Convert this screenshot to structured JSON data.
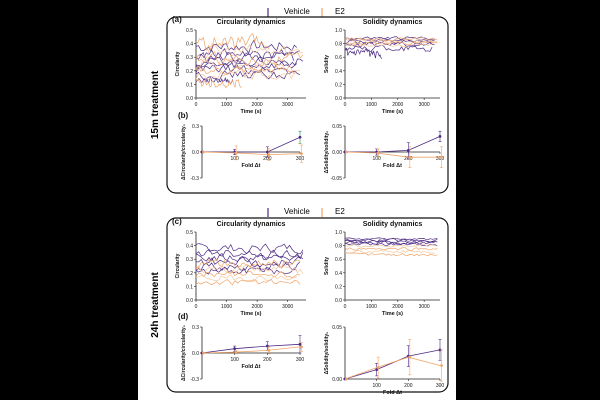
{
  "figure": {
    "background": "#000000",
    "panel_bg": "#ffffff",
    "colors": {
      "vehicle": "#4b2a85",
      "e2": "#f0a468",
      "e2_light": "#f6c79f",
      "axis": "#222222",
      "green": "#2e8b57"
    }
  },
  "legend": {
    "vehicle": "Vehicle",
    "e2": "E2"
  },
  "groups": [
    {
      "label": "15m treatment"
    },
    {
      "label": "24h treatment"
    }
  ],
  "chart_data": [
    {
      "id": "a-circ",
      "panel": "(a)",
      "type": "line",
      "title": "Circularity dynamics",
      "xlabel": "Time (s)",
      "ylabel": "Circularity",
      "xlim": [
        0,
        3600
      ],
      "ylim": [
        0,
        0.5
      ],
      "xticks": [
        "0",
        "1000",
        "2000",
        "3000"
      ],
      "yticks": [
        "0.0",
        "0.1",
        "0.2",
        "0.3",
        "0.4",
        "0.5"
      ],
      "series": [
        {
          "name": "Vehicle",
          "level": 0.38,
          "amp": 0.04,
          "end_x": 3300
        },
        {
          "name": "Vehicle",
          "level": 0.33,
          "amp": 0.03,
          "end_x": 3400
        },
        {
          "name": "Vehicle",
          "level": 0.3,
          "amp": 0.04,
          "end_x": 3200
        },
        {
          "name": "Vehicle",
          "level": 0.27,
          "amp": 0.03,
          "end_x": 3500
        },
        {
          "name": "Vehicle",
          "level": 0.24,
          "amp": 0.03,
          "end_x": 3300
        },
        {
          "name": "Vehicle",
          "level": 0.21,
          "amp": 0.03,
          "end_x": 3000
        },
        {
          "name": "Vehicle",
          "level": 0.17,
          "amp": 0.03,
          "end_x": 3400
        },
        {
          "name": "Vehicle",
          "level": 0.13,
          "amp": 0.02,
          "end_x": 1200
        },
        {
          "name": "E2",
          "level": 0.4,
          "amp": 0.05,
          "end_x": 2400
        },
        {
          "name": "E2",
          "level": 0.34,
          "amp": 0.05,
          "end_x": 3500
        },
        {
          "name": "E2",
          "level": 0.29,
          "amp": 0.04,
          "end_x": 3500
        },
        {
          "name": "E2",
          "level": 0.24,
          "amp": 0.04,
          "end_x": 3400
        },
        {
          "name": "E2",
          "level": 0.2,
          "amp": 0.03,
          "end_x": 3300
        },
        {
          "name": "E2",
          "level": 0.16,
          "amp": 0.04,
          "end_x": 3200
        },
        {
          "name": "E2",
          "level": 0.11,
          "amp": 0.03,
          "end_x": 1500
        }
      ]
    },
    {
      "id": "a-sol",
      "panel": "",
      "type": "line",
      "title": "Solidity dynamics",
      "xlabel": "Time (s)",
      "ylabel": "Solidity",
      "xlim": [
        0,
        3600
      ],
      "ylim": [
        0,
        1.0
      ],
      "xticks": [
        "0",
        "1000",
        "2000",
        "3000"
      ],
      "yticks": [
        "0.0",
        "0.2",
        "0.4",
        "0.6",
        "0.8",
        "1.0"
      ],
      "series": [
        {
          "name": "Vehicle",
          "level": 0.88,
          "amp": 0.02,
          "end_x": 3400
        },
        {
          "name": "Vehicle",
          "level": 0.85,
          "amp": 0.02,
          "end_x": 3400
        },
        {
          "name": "Vehicle",
          "level": 0.82,
          "amp": 0.03,
          "end_x": 3300
        },
        {
          "name": "Vehicle",
          "level": 0.79,
          "amp": 0.03,
          "end_x": 3400
        },
        {
          "name": "Vehicle",
          "level": 0.74,
          "amp": 0.05,
          "end_x": 3300
        },
        {
          "name": "Vehicle",
          "level": 0.64,
          "amp": 0.06,
          "end_x": 1400
        },
        {
          "name": "E2",
          "level": 0.87,
          "amp": 0.02,
          "end_x": 3500
        },
        {
          "name": "E2",
          "level": 0.84,
          "amp": 0.02,
          "end_x": 3500
        },
        {
          "name": "E2",
          "level": 0.81,
          "amp": 0.02,
          "end_x": 3500
        },
        {
          "name": "E2",
          "level": 0.78,
          "amp": 0.02,
          "end_x": 3400
        }
      ]
    },
    {
      "id": "b-circ",
      "panel": "(b)",
      "type": "errorbar",
      "xlabel": "Fold Δt",
      "ylabel": "ΔCircularity/circularity₀",
      "xlim": [
        0,
        300
      ],
      "ylim": [
        -0.3,
        0.3
      ],
      "xticks": [
        "100",
        "200",
        "300"
      ],
      "yticks": [
        "-0.3",
        "0.0",
        "0.3"
      ],
      "series": [
        {
          "name": "Vehicle",
          "x": [
            0,
            100,
            200,
            300
          ],
          "y": [
            0.0,
            0.0,
            0.0,
            0.17
          ],
          "err": [
            0,
            0.03,
            0.06,
            0.07
          ]
        },
        {
          "name": "E2",
          "x": [
            0,
            100,
            200,
            300
          ],
          "y": [
            0.0,
            -0.01,
            -0.03,
            -0.02
          ],
          "err": [
            0,
            0.08,
            0.07,
            0.1
          ]
        }
      ]
    },
    {
      "id": "b-sol",
      "panel": "",
      "type": "errorbar",
      "xlabel": "Fold Δt",
      "ylabel": "ΔSolidity/solidity₀",
      "xlim": [
        0,
        300
      ],
      "ylim": [
        -0.05,
        0.05
      ],
      "xticks": [
        "100",
        "200",
        "300"
      ],
      "yticks": [
        "-0.05",
        "0.00",
        "0.05"
      ],
      "series": [
        {
          "name": "Vehicle",
          "x": [
            0,
            100,
            200,
            300
          ],
          "y": [
            0.0,
            0.0,
            0.003,
            0.03
          ],
          "err": [
            0,
            0.006,
            0.015,
            0.01
          ]
        },
        {
          "name": "E2",
          "x": [
            0,
            100,
            200,
            300
          ],
          "y": [
            0.0,
            -0.002,
            -0.01,
            -0.01
          ],
          "err": [
            0,
            0.008,
            0.02,
            0.02
          ]
        }
      ]
    },
    {
      "id": "c-circ",
      "panel": "(c)",
      "type": "line",
      "title": "Circularity dynamics",
      "xlabel": "Time (s)",
      "ylabel": "Circularity",
      "xlim": [
        0,
        3600
      ],
      "ylim": [
        0,
        0.5
      ],
      "xticks": [
        "0",
        "1000",
        "2000",
        "3000"
      ],
      "yticks": [
        "0.0",
        "0.1",
        "0.2",
        "0.3",
        "0.4",
        "0.5"
      ],
      "series": [
        {
          "name": "Vehicle",
          "level": 0.38,
          "amp": 0.03,
          "end_x": 3500
        },
        {
          "name": "Vehicle",
          "level": 0.34,
          "amp": 0.03,
          "end_x": 3500
        },
        {
          "name": "Vehicle",
          "level": 0.31,
          "amp": 0.03,
          "end_x": 3400
        },
        {
          "name": "Vehicle",
          "level": 0.28,
          "amp": 0.03,
          "end_x": 3500
        },
        {
          "name": "Vehicle",
          "level": 0.25,
          "amp": 0.03,
          "end_x": 3400
        },
        {
          "name": "Vehicle",
          "level": 0.22,
          "amp": 0.03,
          "end_x": 3300
        },
        {
          "name": "E2",
          "level": 0.27,
          "amp": 0.03,
          "end_x": 3400
        },
        {
          "name": "E2",
          "level": 0.22,
          "amp": 0.03,
          "end_x": 3500
        },
        {
          "name": "E2",
          "level": 0.19,
          "amp": 0.02,
          "end_x": 3400
        },
        {
          "name": "E2",
          "level": 0.16,
          "amp": 0.02,
          "end_x": 3300
        },
        {
          "name": "E2",
          "level": 0.13,
          "amp": 0.02,
          "end_x": 3400
        }
      ]
    },
    {
      "id": "c-sol",
      "panel": "",
      "type": "line",
      "title": "Solidity dynamics",
      "xlabel": "Time (s)",
      "ylabel": "Solidity",
      "xlim": [
        0,
        3600
      ],
      "ylim": [
        0,
        1.0
      ],
      "xticks": [
        "0",
        "1000",
        "2000",
        "3000"
      ],
      "yticks": [
        "0.0",
        "0.2",
        "0.4",
        "0.6",
        "0.8",
        "1.0"
      ],
      "series": [
        {
          "name": "Vehicle",
          "level": 0.9,
          "amp": 0.01,
          "end_x": 3500
        },
        {
          "name": "Vehicle",
          "level": 0.88,
          "amp": 0.02,
          "end_x": 3500
        },
        {
          "name": "Vehicle",
          "level": 0.86,
          "amp": 0.02,
          "end_x": 3500
        },
        {
          "name": "Vehicle",
          "level": 0.84,
          "amp": 0.02,
          "end_x": 3400
        },
        {
          "name": "Vehicle",
          "level": 0.82,
          "amp": 0.02,
          "end_x": 3500
        },
        {
          "name": "E2",
          "level": 0.8,
          "amp": 0.02,
          "end_x": 3500
        },
        {
          "name": "E2",
          "level": 0.75,
          "amp": 0.02,
          "end_x": 3500
        },
        {
          "name": "E2",
          "level": 0.71,
          "amp": 0.02,
          "end_x": 3400
        },
        {
          "name": "E2",
          "level": 0.67,
          "amp": 0.02,
          "end_x": 3500
        }
      ]
    },
    {
      "id": "d-circ",
      "panel": "(d)",
      "type": "errorbar",
      "xlabel": "Fold Δt",
      "ylabel": "ΔCircularity/circularity₀",
      "xlim": [
        0,
        300
      ],
      "ylim": [
        -0.3,
        0.3
      ],
      "xticks": [
        "100",
        "200",
        "300"
      ],
      "yticks": [
        "-0.3",
        "0.0",
        "0.3"
      ],
      "series": [
        {
          "name": "Vehicle",
          "x": [
            0,
            100,
            200,
            300
          ],
          "y": [
            0.0,
            0.05,
            0.08,
            0.1
          ],
          "err": [
            0,
            0.03,
            0.05,
            0.1
          ]
        },
        {
          "name": "E2",
          "x": [
            0,
            100,
            200,
            300
          ],
          "y": [
            0.0,
            0.01,
            0.03,
            0.07
          ],
          "err": [
            0,
            0.02,
            0.04,
            0.05
          ]
        }
      ]
    },
    {
      "id": "d-sol",
      "panel": "",
      "type": "errorbar",
      "xlabel": "Fold Δt",
      "ylabel": "ΔSolidity/solidity₀",
      "xlim": [
        0,
        300
      ],
      "ylim": [
        0.0,
        0.05
      ],
      "xticks": [
        "100",
        "200",
        "300"
      ],
      "yticks": [
        "0.00",
        "0.05"
      ],
      "series": [
        {
          "name": "Vehicle",
          "x": [
            0,
            100,
            200,
            300
          ],
          "y": [
            0.0,
            0.009,
            0.022,
            0.028
          ],
          "err": [
            0,
            0.006,
            0.01,
            0.01
          ]
        },
        {
          "name": "E2",
          "x": [
            0,
            100,
            200,
            300
          ],
          "y": [
            0.0,
            0.011,
            0.021,
            0.013
          ],
          "err": [
            0,
            0.01,
            0.017,
            0.015
          ]
        }
      ]
    }
  ]
}
